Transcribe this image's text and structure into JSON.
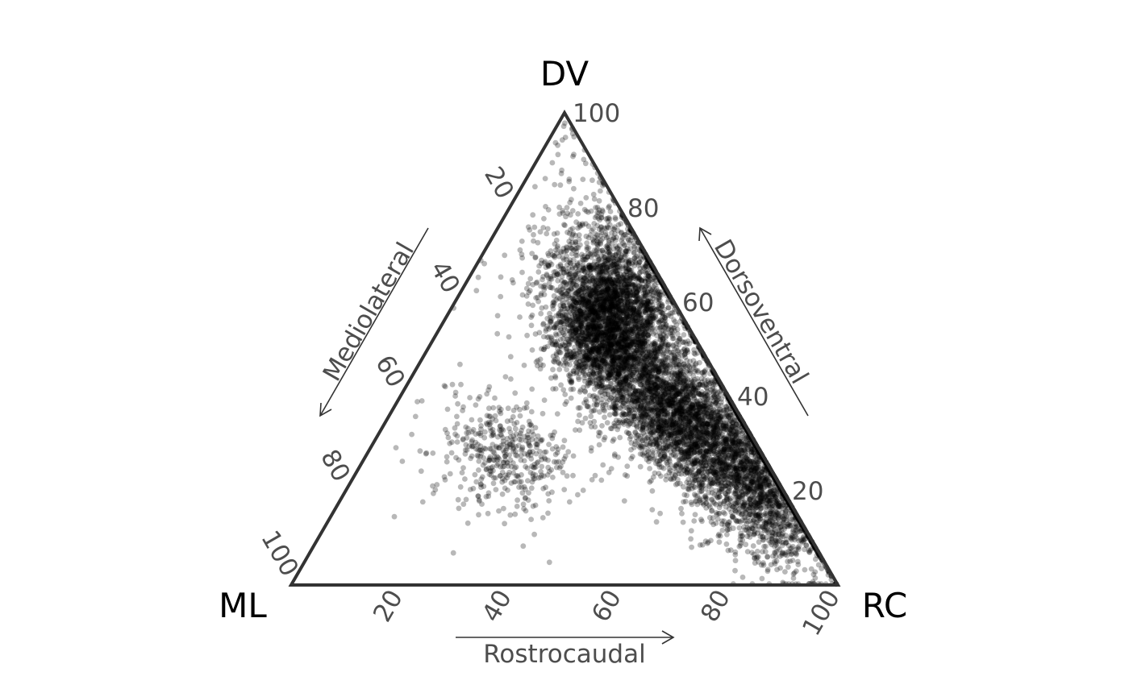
{
  "chart_data": {
    "type": "scatter",
    "subtype": "ternary",
    "vertex_labels": {
      "top": "DV",
      "left": "ML",
      "right": "RC"
    },
    "axes": {
      "bottom": {
        "title": "Rostrocaudal",
        "component": "RC",
        "ticks": [
          "20",
          "40",
          "60",
          "80",
          "100"
        ]
      },
      "right": {
        "title": "Dorsoventral",
        "component": "DV",
        "ticks": [
          "20",
          "40",
          "60",
          "80",
          "100"
        ]
      },
      "left": {
        "title": "Mediolateral",
        "component": "ML",
        "ticks": [
          "20",
          "40",
          "60",
          "80",
          "100"
        ]
      }
    },
    "limits": [
      0,
      100
    ],
    "grid": false,
    "point_style": {
      "color": "#000000",
      "opacity": 0.28
    },
    "clusters": [
      {
        "RC": 28,
        "DV": 62,
        "ML": 10,
        "weight": 0.2
      },
      {
        "RC": 32,
        "DV": 52,
        "ML": 16,
        "weight": 0.22
      },
      {
        "RC": 48,
        "DV": 40,
        "ML": 12,
        "weight": 0.15
      },
      {
        "RC": 58,
        "DV": 33,
        "ML": 9,
        "weight": 0.14
      },
      {
        "RC": 72,
        "DV": 24,
        "ML": 4,
        "weight": 0.17
      },
      {
        "RC": 84,
        "DV": 14,
        "ML": 2,
        "weight": 0.07
      },
      {
        "RC": 25,
        "DV": 28,
        "ML": 47,
        "weight": 0.05
      }
    ],
    "approx_point_count": 9000
  }
}
